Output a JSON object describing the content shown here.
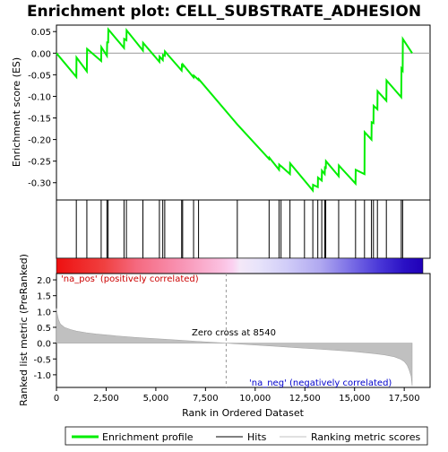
{
  "chart_data": {
    "type": "line",
    "title": "Enrichment plot: CELL_SUBSTRATE_ADHESION",
    "top_panel": {
      "ylabel": "Enrichment score (ES)",
      "ylim": [
        -0.34,
        0.065
      ],
      "y_ticks": [
        0.05,
        0.0,
        -0.05,
        -0.1,
        -0.15,
        -0.2,
        -0.25,
        -0.3
      ],
      "y_tick_labels": [
        "0.05",
        "0.00",
        "-0.05",
        "-0.10",
        "-0.15",
        "-0.20",
        "-0.25",
        "-0.30"
      ],
      "line_color": "#00ee00",
      "x": [
        0,
        1000,
        1010,
        1530,
        1540,
        2250,
        2260,
        2540,
        2550,
        2600,
        2610,
        3400,
        3410,
        3520,
        3530,
        4350,
        4360,
        5180,
        5190,
        5350,
        5360,
        5450,
        5460,
        6300,
        6310,
        6350,
        6360,
        6900,
        6910,
        7150,
        7160,
        9100,
        10700,
        10710,
        11200,
        11210,
        11300,
        11310,
        11750,
        11760,
        12900,
        12910,
        13150,
        13160,
        13350,
        13360,
        13500,
        13510,
        13550,
        13560,
        14200,
        14210,
        15050,
        15060,
        15500,
        15510,
        15850,
        15860,
        15950,
        15960,
        16150,
        16160,
        16600,
        16610,
        17350,
        17360,
        17420,
        17430,
        17900
      ],
      "y": [
        0.0,
        -0.055,
        -0.01,
        -0.042,
        0.01,
        -0.018,
        0.014,
        -0.006,
        0.025,
        0.025,
        0.055,
        0.012,
        0.033,
        0.03,
        0.053,
        0.006,
        0.024,
        -0.02,
        -0.008,
        -0.016,
        -0.004,
        -0.006,
        0.004,
        -0.04,
        -0.028,
        -0.03,
        -0.026,
        -0.056,
        -0.052,
        -0.062,
        -0.06,
        -0.165,
        -0.245,
        -0.242,
        -0.27,
        -0.258,
        -0.262,
        -0.262,
        -0.28,
        -0.255,
        -0.318,
        -0.305,
        -0.31,
        -0.288,
        -0.295,
        -0.272,
        -0.28,
        -0.262,
        -0.268,
        -0.25,
        -0.285,
        -0.26,
        -0.302,
        -0.27,
        -0.28,
        -0.183,
        -0.2,
        -0.16,
        -0.162,
        -0.122,
        -0.13,
        -0.088,
        -0.11,
        -0.063,
        -0.102,
        -0.036,
        -0.04,
        0.033,
        0.0
      ]
    },
    "hits": [
      1000,
      1530,
      2250,
      2540,
      2600,
      3400,
      3520,
      4350,
      5180,
      5350,
      5450,
      6300,
      6350,
      6900,
      7150,
      9100,
      10700,
      11200,
      11300,
      11750,
      12480,
      12900,
      13150,
      13350,
      13500,
      13550,
      14200,
      15050,
      15500,
      15850,
      15950,
      16150,
      16600,
      17350,
      17420
    ],
    "bottom_panel": {
      "ylabel": "Ranked list metric (PreRanked)",
      "xlabel": "Rank in Ordered Dataset",
      "ylim": [
        -1.4,
        2.2
      ],
      "y_ticks": [
        2.0,
        1.5,
        1.0,
        0.5,
        0.0,
        -0.5,
        -1.0
      ],
      "y_tick_labels": [
        "2.0",
        "1.5",
        "1.0",
        "0.5",
        "0.0",
        "-0.5",
        "-1.0"
      ],
      "x_ticks": [
        0,
        2500,
        5000,
        7500,
        10000,
        12500,
        15000,
        17500
      ],
      "x_tick_labels": [
        "0",
        "2,500",
        "5,000",
        "7,500",
        "10,000",
        "12,500",
        "15,000",
        "17,500"
      ],
      "xlim": [
        0,
        18800
      ],
      "metric_profile": {
        "x": [
          0,
          30,
          100,
          200,
          400,
          700,
          1000,
          1500,
          2000,
          3000,
          4000,
          5000,
          6000,
          7000,
          8000,
          8540,
          9000,
          10000,
          11000,
          12000,
          13000,
          14000,
          15000,
          16000,
          16500,
          17000,
          17300,
          17500,
          17650,
          17750,
          17850,
          17900
        ],
        "y": [
          1.1,
          0.95,
          0.75,
          0.6,
          0.5,
          0.43,
          0.38,
          0.33,
          0.29,
          0.23,
          0.18,
          0.14,
          0.1,
          0.06,
          0.02,
          0.0,
          -0.02,
          -0.06,
          -0.1,
          -0.14,
          -0.18,
          -0.22,
          -0.27,
          -0.33,
          -0.37,
          -0.43,
          -0.5,
          -0.58,
          -0.7,
          -0.85,
          -1.05,
          -1.35
        ]
      },
      "zero_cross_label": "Zero cross at 8540",
      "zero_cross": 8540,
      "pos_label": "'na_pos' (positively correlated)",
      "neg_label": "'na_neg' (negatively correlated)"
    },
    "legend": [
      "Enrichment profile",
      "Hits",
      "Ranking metric scores"
    ],
    "colors": {
      "line": "#00ee00",
      "pos_text": "#cc0000",
      "neg_text": "#0000cc",
      "metric_fill": "#c0c0c0",
      "zero_line": "#a0a0a0"
    }
  }
}
